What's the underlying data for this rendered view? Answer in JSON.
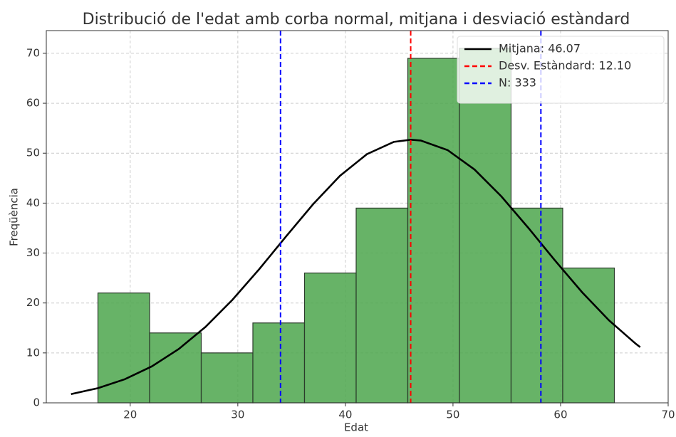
{
  "chart_data": {
    "type": "histogram",
    "title": "Distribució de l'edat amb corba normal, mitjana i desviació estàndard",
    "xlabel": "Edat",
    "ylabel": "Freqüència",
    "bins": [
      17,
      21.8,
      26.6,
      31.4,
      36.2,
      41,
      45.8,
      50.6,
      55.4,
      60.2,
      65
    ],
    "values": [
      22,
      14,
      10,
      16,
      26,
      39,
      69,
      71,
      39,
      27
    ],
    "color": "#4ca64c",
    "edgecolor": "#2b3b2b",
    "xlim": [
      12.2,
      70
    ],
    "ylim": [
      0,
      74.55
    ],
    "xticks": [
      20,
      30,
      40,
      50,
      60,
      70
    ],
    "yticks": [
      0,
      10,
      20,
      30,
      40,
      50,
      60,
      70
    ],
    "grid": true,
    "curve": {
      "color": "#000000",
      "x": [
        14.5,
        17,
        19.5,
        22,
        24.5,
        27,
        29.5,
        32,
        34.5,
        37,
        39.5,
        42,
        44.5,
        46.07,
        47,
        49.5,
        52,
        54.5,
        57,
        59.5,
        62,
        64.5,
        67,
        67.4
      ],
      "y": [
        1.75,
        2.94,
        4.73,
        7.29,
        10.76,
        15.22,
        20.63,
        26.8,
        33.36,
        39.79,
        45.48,
        49.8,
        52.26,
        52.7,
        52.54,
        50.62,
        46.73,
        41.34,
        35.05,
        28.46,
        22.15,
        16.52,
        11.81,
        11.15
      ]
    },
    "vlines": [
      {
        "value": 46.07,
        "color": "#ff0000"
      },
      {
        "value": 33.97,
        "color": "#0000ff"
      },
      {
        "value": 58.17,
        "color": "#0000ff"
      }
    ],
    "legend_position": "upper right",
    "legend": [
      {
        "label": "Mitjana: 46.07",
        "color": "#000000",
        "style": "solid"
      },
      {
        "label": "Desv. Estàndard: 12.10",
        "color": "#ff0000",
        "style": "dashed"
      },
      {
        "label": "N: 333",
        "color": "#0000ff",
        "style": "dashed"
      }
    ]
  }
}
